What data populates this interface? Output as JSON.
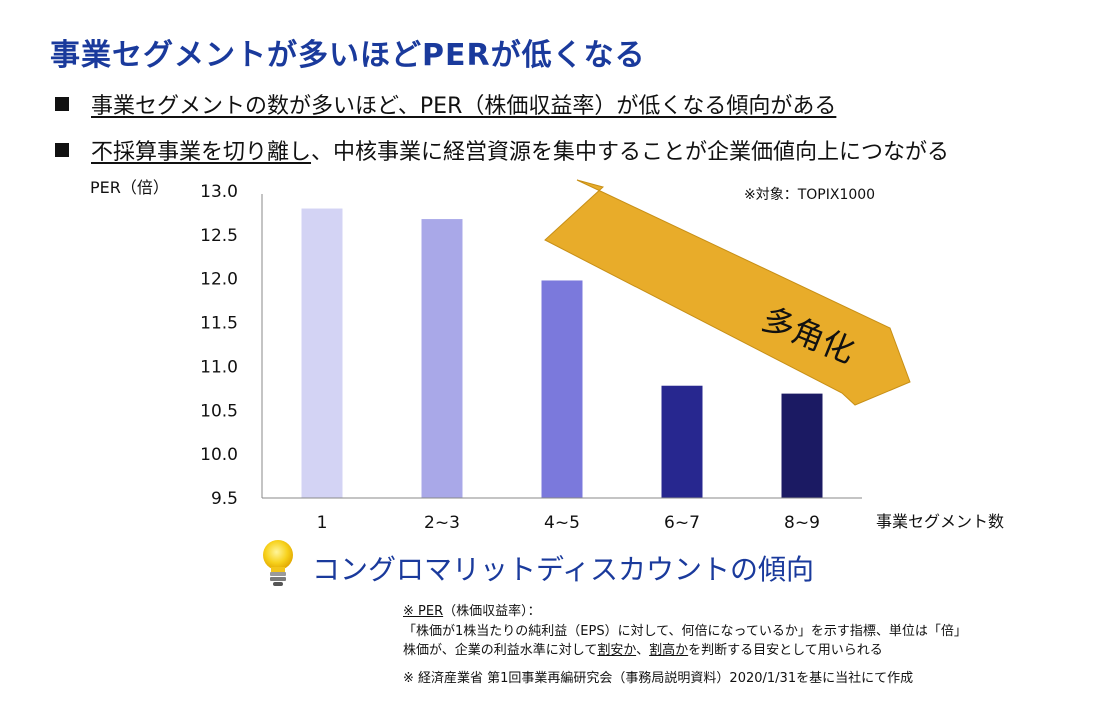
{
  "title": "事業セグメントが多いほどPERが低くなる",
  "bullets": [
    {
      "text": "事業セグメントの数が多いほど、PER（株価収益率）が低くなる傾向がある"
    },
    {
      "underlined": "不採算事業を切り離し",
      "rest": "、中核事業に経営資源を集中することが企業価値向上につながる"
    }
  ],
  "chart_data": {
    "type": "bar",
    "categories": [
      "1",
      "2~3",
      "4~5",
      "6~7",
      "8~9"
    ],
    "values": [
      12.8,
      12.68,
      11.98,
      10.78,
      10.69
    ],
    "ylabel": "PER（倍）",
    "xlabel": "事業セグメント数",
    "ylim": [
      9.5,
      13.0
    ],
    "yticks": [
      "13.0",
      "12.5",
      "12.0",
      "11.5",
      "11.0",
      "10.5",
      "10.0",
      "9.5"
    ],
    "ytick_values": [
      13.0,
      12.5,
      12.0,
      11.5,
      11.0,
      10.5,
      10.0,
      9.5
    ],
    "bar_colors": [
      "#d3d3f4",
      "#a9a8e8",
      "#7b79dc",
      "#27278f",
      "#1b1a63"
    ],
    "annotation": "※対象：TOPIX1000",
    "arrow_label": "多角化",
    "arrow_color": "#e8ac2a",
    "grid": false
  },
  "conglomerate": "コングロマリットディスカウントの傾向",
  "footnotes": {
    "head": "※ PER",
    "head_rest": "（株価収益率）：",
    "line2": "「株価が1株当たりの純利益（EPS）に対して、何倍になっているか」を示す指標、単位は「倍」",
    "line3a": " 株価が、企業の利益水準に対して",
    "line3b": "割安か",
    "line3c": "、",
    "line3d": "割高か",
    "line3e": "を判断する目安として用いられる",
    "source": "※ 経済産業省 第1回事業再編研究会（事務局説明資料）2020/1/31を基に当社にて作成"
  },
  "colors": {
    "title": "#1a3a9c",
    "accent_text": "#1a3a9c"
  }
}
